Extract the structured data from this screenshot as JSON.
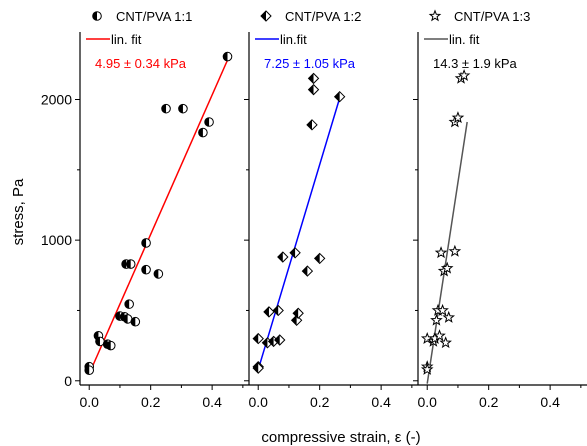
{
  "chart_data": {
    "type": "scatter",
    "xlabel": "compressive strain, ε (-)",
    "ylabel": "stress, Pa",
    "xlim": [
      -0.03,
      0.52
    ],
    "ylim": [
      -30,
      2480
    ],
    "x_ticks": [
      "0.0",
      "0.2",
      "0.4"
    ],
    "y_ticks": [
      "0",
      "1000",
      "2000"
    ],
    "grid": false,
    "panels": [
      {
        "series_name": "CNT/PVA 1:1",
        "marker": "half-filled-circle",
        "fit_label": "lin. fit",
        "slope_text": "4.95 ± 0.34 kPa",
        "fit_color": "#ff0000",
        "slope_color": "#ff0000",
        "fit_line": [
          [
            0.0,
            50
          ],
          [
            0.45,
            2280
          ]
        ],
        "points": [
          [
            0.0,
            100
          ],
          [
            0.0,
            75
          ],
          [
            0.03,
            320
          ],
          [
            0.035,
            280
          ],
          [
            0.06,
            260
          ],
          [
            0.07,
            250
          ],
          [
            0.1,
            460
          ],
          [
            0.115,
            455
          ],
          [
            0.12,
            830
          ],
          [
            0.135,
            830
          ],
          [
            0.13,
            545
          ],
          [
            0.125,
            440
          ],
          [
            0.15,
            420
          ],
          [
            0.185,
            980
          ],
          [
            0.185,
            790
          ],
          [
            0.225,
            760
          ],
          [
            0.25,
            1935
          ],
          [
            0.305,
            1935
          ],
          [
            0.37,
            1765
          ],
          [
            0.39,
            1840
          ],
          [
            0.45,
            2305
          ]
        ]
      },
      {
        "series_name": "CNT/PVA 1:2",
        "marker": "half-filled-diamond",
        "fit_label": "lin.fit",
        "slope_text": "7.25 ± 1.05 kPa",
        "fit_color": "#0000ff",
        "slope_color": "#0000ff",
        "fit_line": [
          [
            0.0,
            80
          ],
          [
            0.265,
            2010
          ]
        ],
        "points": [
          [
            0.0,
            300
          ],
          [
            0.0,
            100
          ],
          [
            0.0,
            90
          ],
          [
            0.03,
            270
          ],
          [
            0.035,
            490
          ],
          [
            0.05,
            280
          ],
          [
            0.065,
            500
          ],
          [
            0.07,
            290
          ],
          [
            0.08,
            880
          ],
          [
            0.12,
            910
          ],
          [
            0.125,
            430
          ],
          [
            0.13,
            480
          ],
          [
            0.16,
            780
          ],
          [
            0.175,
            1820
          ],
          [
            0.18,
            2070
          ],
          [
            0.18,
            2150
          ],
          [
            0.2,
            870
          ],
          [
            0.265,
            2020
          ]
        ]
      },
      {
        "series_name": "CNT/PVA 1:3",
        "marker": "star",
        "fit_label": "lin. fit",
        "slope_text": "14.3 ± 1.9 kPa",
        "fit_color": "#555555",
        "slope_color": "#000000",
        "fit_line": [
          [
            0.0,
            -20
          ],
          [
            0.13,
            1840
          ]
        ],
        "points": [
          [
            0.0,
            300
          ],
          [
            0.0,
            100
          ],
          [
            0.0,
            80
          ],
          [
            0.02,
            280
          ],
          [
            0.03,
            430
          ],
          [
            0.035,
            500
          ],
          [
            0.025,
            300
          ],
          [
            0.04,
            320
          ],
          [
            0.045,
            910
          ],
          [
            0.05,
            500
          ],
          [
            0.055,
            780
          ],
          [
            0.065,
            800
          ],
          [
            0.06,
            270
          ],
          [
            0.07,
            450
          ],
          [
            0.09,
            920
          ],
          [
            0.09,
            1840
          ],
          [
            0.1,
            1870
          ],
          [
            0.11,
            2150
          ],
          [
            0.12,
            2170
          ]
        ]
      }
    ]
  }
}
